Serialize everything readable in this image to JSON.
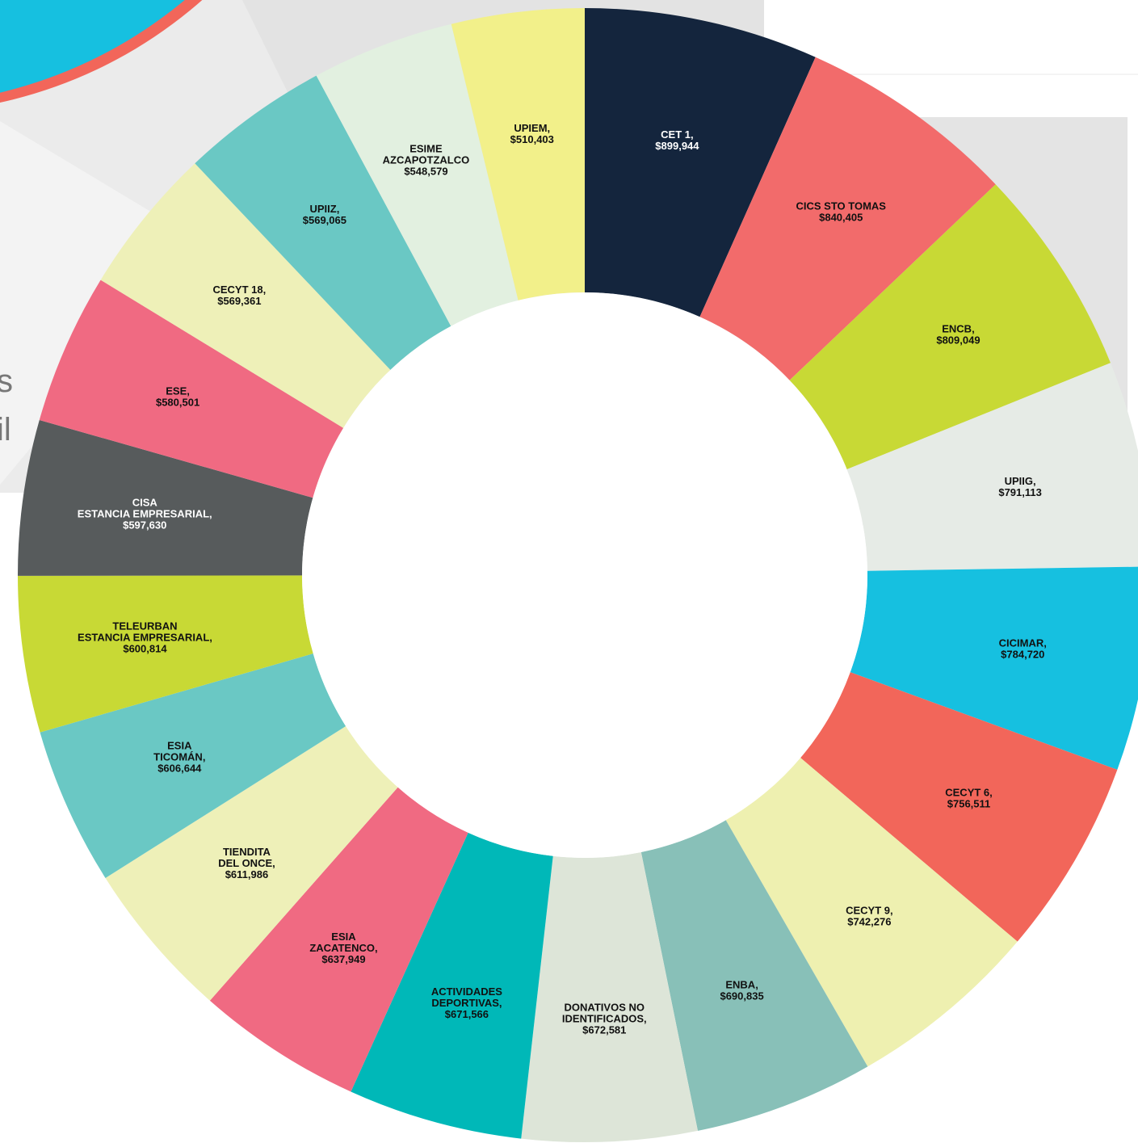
{
  "chart_data": {
    "type": "donut",
    "categories": [
      "CET 1,",
      "CICS STO TOMAS",
      "ENCB,",
      "UPIIG,",
      "CICIMAR,",
      "CECYT 6,",
      "CECYT 9,",
      "ENBA,",
      "DONATIVOS NO\nIDENTIFICADOS,",
      "ACTIVIDADES\nDEPORTIVAS,",
      "ESIA\nZACATENCO,",
      "TIENDITA\nDEL ONCE,",
      "ESIA\nTICOMÁN,",
      "TELEURBAN\nESTANCIA EMPRESARIAL,",
      "CISA\nESTANCIA EMPRESARIAL,",
      "ESE,",
      "CECYT 18,",
      "UPIIZ,",
      "ESIME\nAZCAPOTZALCO",
      "UPIEM,"
    ],
    "values": [
      899944,
      840405,
      809049,
      791113,
      784720,
      756511,
      742276,
      690835,
      672581,
      671566,
      637949,
      611986,
      606644,
      600814,
      597630,
      580501,
      569361,
      569065,
      548579,
      510403
    ],
    "value_labels": [
      "$899,944",
      "$840,405",
      "$809,049",
      "$791,113",
      "$784,720",
      "$756,511",
      "$742,276",
      "$690,835",
      "$672,581",
      "$671,566",
      "$637,949",
      "$611,986",
      "$606,644",
      "$600,814",
      "$597,630",
      "$580,501",
      "$569,361",
      "$569,065",
      "$548,579",
      "$510,403"
    ],
    "colors": [
      "#14253d",
      "#f26b6b",
      "#c8d935",
      "#e6ebe6",
      "#16c0e0",
      "#f2665a",
      "#eef0b0",
      "#88c0b8",
      "#dde5d8",
      "#00b8b8",
      "#f06a82",
      "#eef0b8",
      "#6ac8c4",
      "#c8d935",
      "#575b5c",
      "#f06a82",
      "#eef0b8",
      "#6ac8c4",
      "#e2f0e0",
      "#f2f08a"
    ],
    "fragments": [
      "s",
      "il"
    ]
  }
}
